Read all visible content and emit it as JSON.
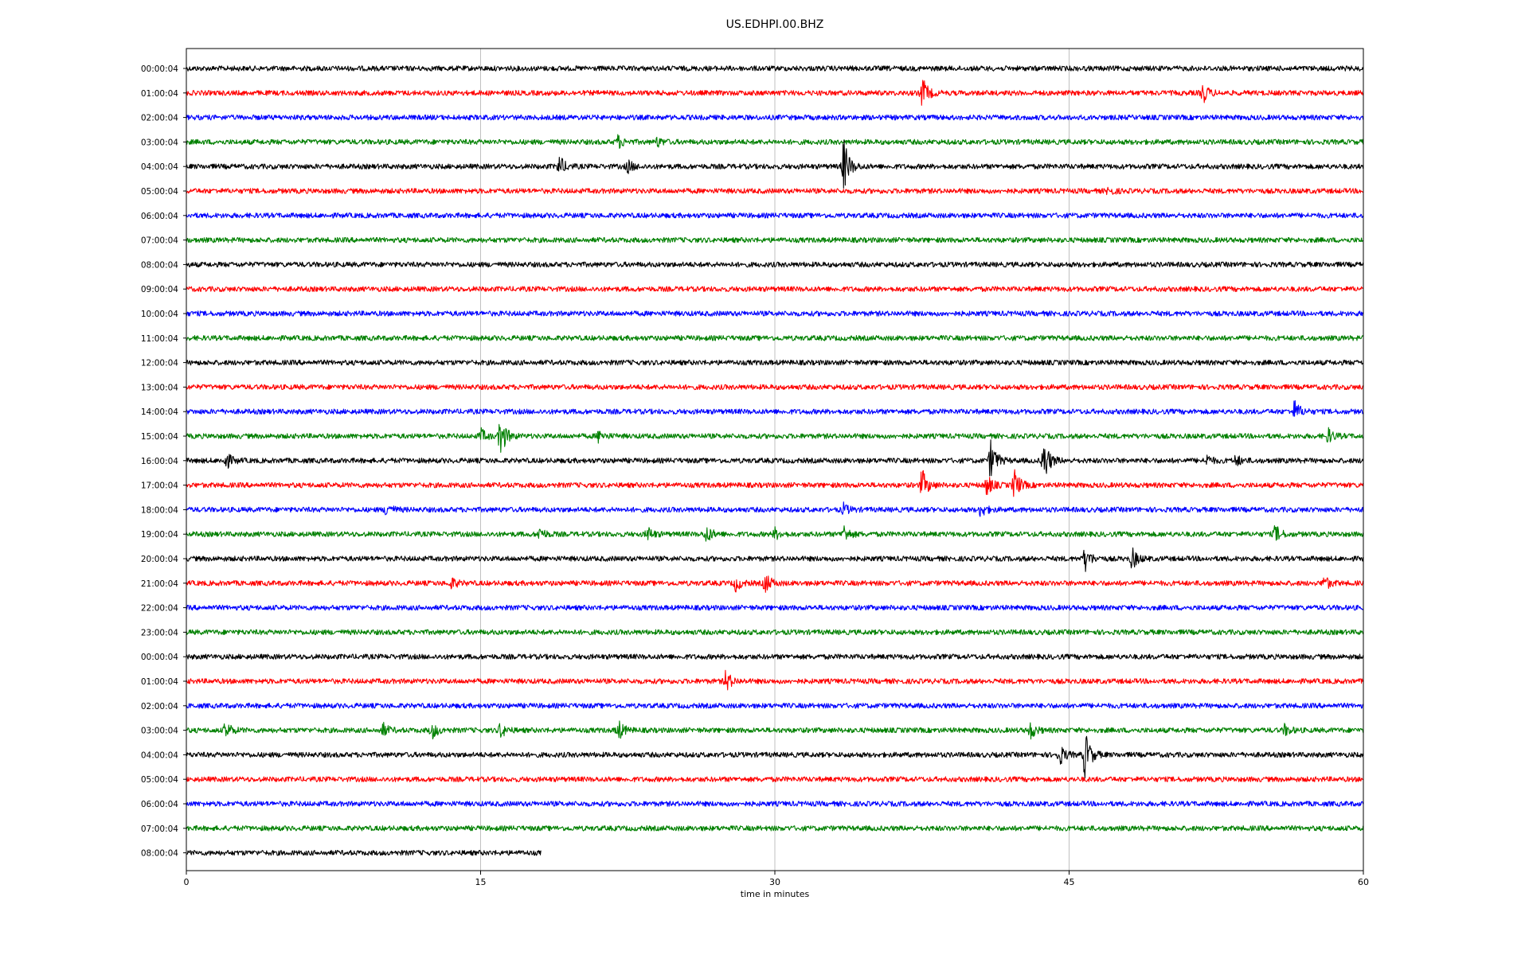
{
  "chart_data": {
    "type": "line",
    "title": "US.EDHPI.00.BHZ",
    "xlabel": "time in minutes",
    "xlim": [
      0,
      60
    ],
    "x_ticks": [
      "0",
      "15",
      "30",
      "45",
      "60"
    ],
    "x_tick_values": [
      0,
      15,
      30,
      45,
      60
    ],
    "grid": "vertical",
    "colors": [
      "#000000",
      "#ff0000",
      "#0000ff",
      "#008000"
    ],
    "rows": [
      {
        "label": "00:00:04",
        "end": 60,
        "events": []
      },
      {
        "label": "01:00:04",
        "end": 60,
        "events": [
          [
            37.5,
            0.9
          ],
          [
            51.8,
            0.6
          ]
        ]
      },
      {
        "label": "02:00:04",
        "end": 60,
        "events": []
      },
      {
        "label": "03:00:04",
        "end": 60,
        "events": [
          [
            22.0,
            0.35
          ],
          [
            24.0,
            0.25
          ]
        ]
      },
      {
        "label": "04:00:04",
        "end": 60,
        "events": [
          [
            19.0,
            0.6
          ],
          [
            22.5,
            0.35
          ],
          [
            33.5,
            1.6
          ]
        ]
      },
      {
        "label": "05:00:04",
        "end": 60,
        "events": [
          [
            47.0,
            0.2
          ]
        ]
      },
      {
        "label": "06:00:04",
        "end": 60,
        "events": []
      },
      {
        "label": "07:00:04",
        "end": 60,
        "events": []
      },
      {
        "label": "08:00:04",
        "end": 60,
        "events": []
      },
      {
        "label": "09:00:04",
        "end": 60,
        "events": []
      },
      {
        "label": "10:00:04",
        "end": 60,
        "events": []
      },
      {
        "label": "11:00:04",
        "end": 60,
        "events": []
      },
      {
        "label": "12:00:04",
        "end": 60,
        "events": []
      },
      {
        "label": "13:00:04",
        "end": 60,
        "events": []
      },
      {
        "label": "14:00:04",
        "end": 60,
        "events": [
          [
            56.5,
            0.6
          ]
        ]
      },
      {
        "label": "15:00:04",
        "end": 60,
        "events": [
          [
            15.0,
            0.4
          ],
          [
            16.0,
            1.2
          ],
          [
            21.0,
            0.3
          ],
          [
            58.2,
            0.4
          ]
        ]
      },
      {
        "label": "16:00:04",
        "end": 60,
        "events": [
          [
            2.0,
            0.5
          ],
          [
            41.0,
            1.2
          ],
          [
            43.7,
            1.3
          ],
          [
            52.0,
            0.3
          ],
          [
            53.5,
            0.3
          ]
        ]
      },
      {
        "label": "17:00:04",
        "end": 60,
        "events": [
          [
            37.5,
            0.9
          ],
          [
            40.8,
            0.6
          ],
          [
            42.2,
            0.9
          ]
        ]
      },
      {
        "label": "18:00:04",
        "end": 60,
        "events": [
          [
            10.2,
            0.4
          ],
          [
            33.5,
            0.3
          ],
          [
            40.5,
            0.4
          ]
        ]
      },
      {
        "label": "19:00:04",
        "end": 60,
        "events": [
          [
            18.0,
            0.35
          ],
          [
            23.5,
            0.4
          ],
          [
            26.5,
            0.5
          ],
          [
            30.0,
            0.3
          ],
          [
            33.5,
            0.5
          ],
          [
            55.5,
            0.5
          ]
        ]
      },
      {
        "label": "20:00:04",
        "end": 60,
        "events": [
          [
            45.8,
            0.7
          ],
          [
            48.2,
            0.6
          ]
        ]
      },
      {
        "label": "21:00:04",
        "end": 60,
        "events": [
          [
            13.5,
            0.3
          ],
          [
            28.0,
            0.4
          ],
          [
            29.5,
            0.6
          ],
          [
            58.0,
            0.4
          ]
        ]
      },
      {
        "label": "22:00:04",
        "end": 60,
        "events": []
      },
      {
        "label": "23:00:04",
        "end": 60,
        "events": []
      },
      {
        "label": "00:00:04",
        "end": 60,
        "events": []
      },
      {
        "label": "01:00:04",
        "end": 60,
        "events": [
          [
            27.5,
            0.6
          ]
        ]
      },
      {
        "label": "02:00:04",
        "end": 60,
        "events": []
      },
      {
        "label": "03:00:04",
        "end": 60,
        "events": [
          [
            2.0,
            0.5
          ],
          [
            10.0,
            0.4
          ],
          [
            12.5,
            0.5
          ],
          [
            16.0,
            0.4
          ],
          [
            22.0,
            0.6
          ],
          [
            43.0,
            0.5
          ],
          [
            56.0,
            0.3
          ]
        ]
      },
      {
        "label": "04:00:04",
        "end": 60,
        "events": [
          [
            44.5,
            0.6
          ],
          [
            45.8,
            1.4
          ]
        ]
      },
      {
        "label": "05:00:04",
        "end": 60,
        "events": []
      },
      {
        "label": "06:00:04",
        "end": 60,
        "events": []
      },
      {
        "label": "07:00:04",
        "end": 60,
        "events": []
      },
      {
        "label": "08:00:04",
        "end": 18.1,
        "events": []
      }
    ]
  }
}
